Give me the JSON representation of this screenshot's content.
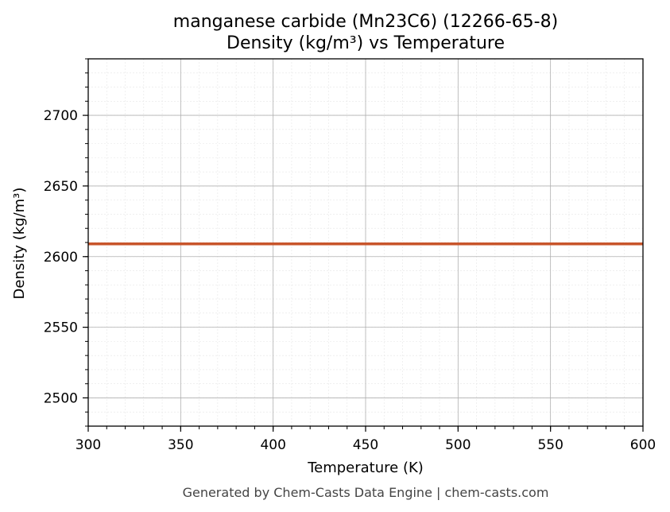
{
  "chart_data": {
    "type": "line",
    "title_line1": "manganese carbide (Mn23C6) (12266-65-8)",
    "title_line2": "Density (kg/m³) vs Temperature",
    "xlabel": "Temperature (K)",
    "ylabel": "Density (kg/m³)",
    "xlim": [
      300,
      600
    ],
    "ylim": [
      2480,
      2740
    ],
    "x_ticks": [
      300,
      350,
      400,
      450,
      500,
      550,
      600
    ],
    "y_ticks": [
      2500,
      2550,
      2600,
      2650,
      2700
    ],
    "grid": true,
    "series": [
      {
        "color": "#c8552b",
        "x": [
          300,
          600
        ],
        "y": [
          2609,
          2609
        ]
      }
    ]
  },
  "footer": "Generated by Chem-Casts Data Engine | chem-casts.com"
}
